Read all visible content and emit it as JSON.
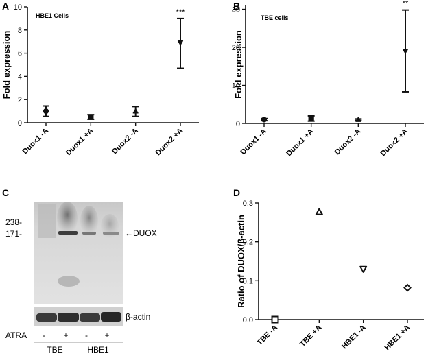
{
  "panels": [
    {
      "letter": "A"
    },
    {
      "letter": "B"
    },
    {
      "letter": "C"
    },
    {
      "letter": "D"
    }
  ],
  "chart_data": [
    {
      "type": "scatter",
      "panel": "A",
      "annotation": "HBE1 Cells",
      "ylabel": "Fold expression",
      "ylim": [
        0,
        10
      ],
      "yticks": [
        0,
        2,
        4,
        6,
        8,
        10
      ],
      "categories": [
        "Duox1 -A",
        "Duox1 +A",
        "Duox2 -A",
        "Duox2 +A"
      ],
      "points": [
        {
          "category": "Duox1 -A",
          "mean": 1.0,
          "low": 0.55,
          "high": 1.45,
          "marker": "circle"
        },
        {
          "category": "Duox1 +A",
          "mean": 0.5,
          "low": 0.3,
          "high": 0.7,
          "marker": "square"
        },
        {
          "category": "Duox2 -A",
          "mean": 1.0,
          "low": 0.55,
          "high": 1.4,
          "marker": "triangle-up"
        },
        {
          "category": "Duox2 +A",
          "mean": 6.9,
          "low": 4.7,
          "high": 9.0,
          "marker": "triangle-down"
        }
      ],
      "significance": [
        {
          "category": "Duox2 +A",
          "label": "***"
        }
      ]
    },
    {
      "type": "scatter",
      "panel": "B",
      "annotation": "TBE cells",
      "ylabel": "Fold expression",
      "ylim": [
        0,
        31
      ],
      "yticks": [
        0,
        10,
        20,
        30
      ],
      "categories": [
        "Duox1 -A",
        "Duox1 +A",
        "Duox2 -A",
        "Duox2 +A"
      ],
      "points": [
        {
          "category": "Duox1 -A",
          "mean": 1.0,
          "low": 0.7,
          "high": 1.3,
          "marker": "circle"
        },
        {
          "category": "Duox1 +A",
          "mean": 1.3,
          "low": 0.6,
          "high": 2.0,
          "marker": "square"
        },
        {
          "category": "Duox2 -A",
          "mean": 1.0,
          "low": 0.8,
          "high": 1.2,
          "marker": "triangle-up"
        },
        {
          "category": "Duox2 +A",
          "mean": 19.0,
          "low": 8.3,
          "high": 29.8,
          "marker": "triangle-down"
        }
      ],
      "significance": [
        {
          "category": "Duox2 +A",
          "label": "**"
        }
      ]
    },
    {
      "type": "scatter",
      "panel": "D",
      "ylabel": "Ratio of DUOX/β-actin",
      "ylim": [
        0,
        0.3
      ],
      "yticks": [
        0.0,
        0.1,
        0.2,
        0.3
      ],
      "ytick_labels": [
        "0.0",
        "0.1",
        "0.2",
        "0.3"
      ],
      "categories": [
        "TBE -A",
        "TBE +A",
        "HBE1 -A",
        "HBE1 +A"
      ],
      "points": [
        {
          "category": "TBE -A",
          "value": 0.0,
          "marker": "square"
        },
        {
          "category": "TBE +A",
          "value": 0.277,
          "marker": "triangle-up"
        },
        {
          "category": "HBE1 -A",
          "value": 0.13,
          "marker": "triangle-down"
        },
        {
          "category": "HBE1 +A",
          "value": 0.082,
          "marker": "diamond"
        }
      ]
    }
  ],
  "blot": {
    "markers": [
      "238-",
      "171-"
    ],
    "duox_label": "←DUOX",
    "actin_label": "β-actin",
    "atra_label": "ATRA",
    "lane_signs": [
      "-",
      "+",
      "-",
      "+"
    ],
    "groups": [
      "TBE",
      "HBE1"
    ]
  }
}
